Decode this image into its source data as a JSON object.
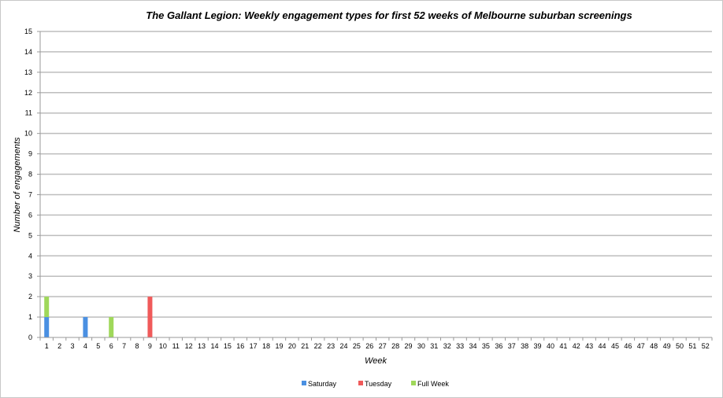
{
  "chart_data": {
    "type": "bar",
    "stacked": true,
    "title": "The Gallant Legion: Weekly engagement types for first 52 weeks of Melbourne suburban screenings",
    "xlabel": "Week",
    "ylabel": "Number of engagements",
    "ylim": [
      0,
      15
    ],
    "yticks": [
      0,
      1,
      2,
      3,
      4,
      5,
      6,
      7,
      8,
      9,
      10,
      11,
      12,
      13,
      14,
      15
    ],
    "categories": [
      "1",
      "2",
      "3",
      "4",
      "5",
      "6",
      "7",
      "8",
      "9",
      "10",
      "11",
      "12",
      "13",
      "14",
      "15",
      "16",
      "17",
      "18",
      "19",
      "20",
      "21",
      "22",
      "23",
      "24",
      "25",
      "26",
      "27",
      "28",
      "29",
      "30",
      "31",
      "32",
      "33",
      "34",
      "35",
      "36",
      "37",
      "38",
      "39",
      "40",
      "41",
      "42",
      "43",
      "44",
      "45",
      "46",
      "47",
      "48",
      "49",
      "50",
      "51",
      "52"
    ],
    "series": [
      {
        "name": "Saturday",
        "color": "#4a90e2",
        "values": [
          1,
          0,
          0,
          1,
          0,
          0,
          0,
          0,
          0,
          0,
          0,
          0,
          0,
          0,
          0,
          0,
          0,
          0,
          0,
          0,
          0,
          0,
          0,
          0,
          0,
          0,
          0,
          0,
          0,
          0,
          0,
          0,
          0,
          0,
          0,
          0,
          0,
          0,
          0,
          0,
          0,
          0,
          0,
          0,
          0,
          0,
          0,
          0,
          0,
          0,
          0,
          0
        ]
      },
      {
        "name": "Tuesday",
        "color": "#f05a5a",
        "values": [
          0,
          0,
          0,
          0,
          0,
          0,
          0,
          0,
          2,
          0,
          0,
          0,
          0,
          0,
          0,
          0,
          0,
          0,
          0,
          0,
          0,
          0,
          0,
          0,
          0,
          0,
          0,
          0,
          0,
          0,
          0,
          0,
          0,
          0,
          0,
          0,
          0,
          0,
          0,
          0,
          0,
          0,
          0,
          0,
          0,
          0,
          0,
          0,
          0,
          0,
          0,
          0
        ]
      },
      {
        "name": "Full Week",
        "color": "#9fd85a",
        "values": [
          1,
          0,
          0,
          0,
          0,
          1,
          0,
          0,
          0,
          0,
          0,
          0,
          0,
          0,
          0,
          0,
          0,
          0,
          0,
          0,
          0,
          0,
          0,
          0,
          0,
          0,
          0,
          0,
          0,
          0,
          0,
          0,
          0,
          0,
          0,
          0,
          0,
          0,
          0,
          0,
          0,
          0,
          0,
          0,
          0,
          0,
          0,
          0,
          0,
          0,
          0,
          0
        ]
      }
    ],
    "grid": true,
    "legend": "bottom"
  }
}
